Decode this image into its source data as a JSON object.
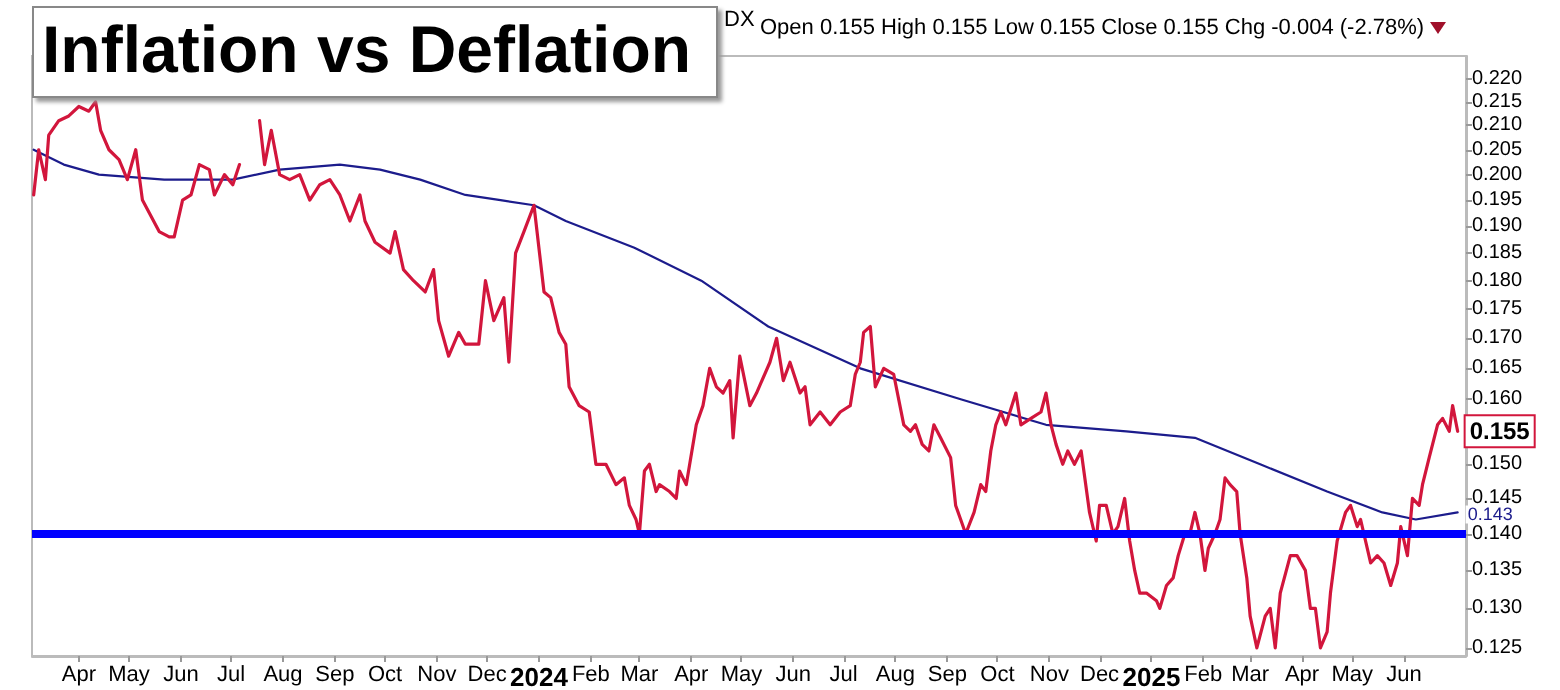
{
  "chart_data": {
    "type": "line",
    "title": "Inflation vs Deflation",
    "annotations": [
      "DX",
      "Open 0.155  High 0.155  Low 0.155  Close 0.155  Chg -0.004 (-2.78%)"
    ],
    "log": true,
    "grid": false,
    "marker": "none",
    "line_style": "solid",
    "xlim": [
      "2023-03-04",
      "2025-07-08"
    ],
    "xticks": [
      {
        "value": "2023-04-01",
        "label": "Apr"
      },
      {
        "value": "2023-05-01",
        "label": "May"
      },
      {
        "value": "2023-06-01",
        "label": "Jun"
      },
      {
        "value": "2023-07-01",
        "label": "Jul"
      },
      {
        "value": "2023-08-01",
        "label": "Aug"
      },
      {
        "value": "2023-09-01",
        "label": "Sep"
      },
      {
        "value": "2023-10-01",
        "label": "Oct"
      },
      {
        "value": "2023-11-01",
        "label": "Nov"
      },
      {
        "value": "2023-12-01",
        "label": "Dec"
      },
      {
        "value": "2024-01-01",
        "label": "2024"
      },
      {
        "value": "2024-02-01",
        "label": "Feb"
      },
      {
        "value": "2024-03-01",
        "label": "Mar"
      },
      {
        "value": "2024-04-01",
        "label": "Apr"
      },
      {
        "value": "2024-05-01",
        "label": "May"
      },
      {
        "value": "2024-06-01",
        "label": "Jun"
      },
      {
        "value": "2024-07-01",
        "label": "Jul"
      },
      {
        "value": "2024-08-01",
        "label": "Aug"
      },
      {
        "value": "2024-09-01",
        "label": "Sep"
      },
      {
        "value": "2024-10-01",
        "label": "Oct"
      },
      {
        "value": "2024-11-01",
        "label": "Nov"
      },
      {
        "value": "2024-12-01",
        "label": "Dec"
      },
      {
        "value": "2025-01-01",
        "label": "2025"
      },
      {
        "value": "2025-02-01",
        "label": "Feb"
      },
      {
        "value": "2025-03-01",
        "label": "Mar"
      },
      {
        "value": "2025-04-01",
        "label": "Apr"
      },
      {
        "value": "2025-05-01",
        "label": "May"
      },
      {
        "value": "2025-06-01",
        "label": "Jun"
      }
    ],
    "ylim": [
      0.124,
      0.225
    ],
    "yticks": [
      {
        "value": 0.125,
        "label": "0.125"
      },
      {
        "value": 0.13,
        "label": "0.130"
      },
      {
        "value": 0.135,
        "label": "0.135"
      },
      {
        "value": 0.14,
        "label": "0.140"
      },
      {
        "value": 0.145,
        "label": "0.145"
      },
      {
        "value": 0.15,
        "label": "0.150"
      },
      {
        "value": 0.155,
        "label": null
      },
      {
        "value": 0.16,
        "label": "0.160"
      },
      {
        "value": 0.165,
        "label": "0.165"
      },
      {
        "value": 0.17,
        "label": "0.170"
      },
      {
        "value": 0.175,
        "label": "0.175"
      },
      {
        "value": 0.18,
        "label": "0.180"
      },
      {
        "value": 0.185,
        "label": "0.185"
      },
      {
        "value": 0.19,
        "label": "0.190"
      },
      {
        "value": 0.195,
        "label": "0.195"
      },
      {
        "value": 0.2,
        "label": "0.200"
      },
      {
        "value": 0.205,
        "label": "0.205"
      },
      {
        "value": 0.21,
        "label": "0.210"
      },
      {
        "value": 0.215,
        "label": "0.215"
      },
      {
        "value": 0.22,
        "label": "0.220"
      }
    ],
    "ref_lines": [
      {
        "axis": "y",
        "value": 0.14,
        "color": "#0000ff"
      }
    ],
    "series": [
      {
        "color": "#d2163c",
        "x": [
          "2023-03-05",
          "2023-03-08",
          "2023-03-12",
          "2023-03-14",
          "2023-03-20",
          "2023-03-26",
          "2023-04-01",
          "2023-04-07",
          "2023-04-11",
          "2023-04-14",
          "2023-04-19",
          "2023-04-25",
          "2023-04-30",
          "2023-05-05",
          "2023-05-09",
          "2023-05-14",
          "2023-05-19",
          "2023-05-25",
          "2023-05-28",
          "2023-06-02",
          "2023-06-07",
          "2023-06-12",
          "2023-06-18",
          "2023-06-21",
          "2023-06-27",
          "2023-07-02",
          "2023-07-06",
          "2023-07-08",
          "2023-07-12",
          "2023-07-18",
          "2023-07-21",
          "2023-07-25",
          "2023-07-30",
          "2023-08-05",
          "2023-08-11",
          "2023-08-17",
          "2023-08-23",
          "2023-08-29",
          "2023-09-04",
          "2023-09-10",
          "2023-09-16",
          "2023-09-19",
          "2023-09-25",
          "2023-10-04",
          "2023-10-07",
          "2023-10-12",
          "2023-10-18",
          "2023-10-25",
          "2023-10-30",
          "2023-11-02",
          "2023-11-08",
          "2023-11-14",
          "2023-11-18",
          "2023-11-26",
          "2023-11-30",
          "2023-12-05",
          "2023-12-11",
          "2023-12-14",
          "2023-12-18",
          "2023-12-23",
          "2023-12-29",
          "2024-01-04",
          "2024-01-08",
          "2024-01-13",
          "2024-01-17",
          "2024-01-19",
          "2024-01-25",
          "2024-01-31",
          "2024-02-04",
          "2024-02-10",
          "2024-02-16",
          "2024-02-21",
          "2024-02-24",
          "2024-02-28",
          "2024-03-01",
          "2024-03-04",
          "2024-03-07",
          "2024-03-11",
          "2024-03-13",
          "2024-03-19",
          "2024-03-23",
          "2024-03-25",
          "2024-03-29",
          "2024-04-04",
          "2024-04-08",
          "2024-04-12",
          "2024-04-16",
          "2024-04-20",
          "2024-04-24",
          "2024-04-26",
          "2024-04-30",
          "2024-05-06",
          "2024-05-10",
          "2024-05-18",
          "2024-05-22",
          "2024-05-26",
          "2024-05-30",
          "2024-06-05",
          "2024-06-08",
          "2024-06-11",
          "2024-06-17",
          "2024-06-23",
          "2024-06-29",
          "2024-07-05",
          "2024-07-08",
          "2024-07-11",
          "2024-07-13",
          "2024-07-17",
          "2024-07-20",
          "2024-07-25",
          "2024-07-31",
          "2024-08-06",
          "2024-08-10",
          "2024-08-13",
          "2024-08-17",
          "2024-08-21",
          "2024-08-24",
          "2024-08-28",
          "2024-09-03",
          "2024-09-06",
          "2024-09-09",
          "2024-09-12",
          "2024-09-17",
          "2024-09-21",
          "2024-09-24",
          "2024-09-27",
          "2024-09-30",
          "2024-10-03",
          "2024-10-06",
          "2024-10-12",
          "2024-10-15",
          "2024-10-21",
          "2024-10-27",
          "2024-10-30",
          "2024-11-02",
          "2024-11-05",
          "2024-11-09",
          "2024-11-12",
          "2024-11-16",
          "2024-11-20",
          "2024-11-25",
          "2024-11-29",
          "2024-12-01",
          "2024-12-05",
          "2024-12-09",
          "2024-12-12",
          "2024-12-16",
          "2024-12-19",
          "2024-12-22",
          "2024-12-25",
          "2024-12-29",
          "2025-01-04",
          "2025-01-06",
          "2025-01-10",
          "2025-01-14",
          "2025-01-17",
          "2025-01-21",
          "2025-01-24",
          "2025-01-27",
          "2025-01-30",
          "2025-02-02",
          "2025-02-04",
          "2025-02-08",
          "2025-02-11",
          "2025-02-14",
          "2025-02-17",
          "2025-02-21",
          "2025-02-23",
          "2025-02-27",
          "2025-03-01",
          "2025-03-05",
          "2025-03-10",
          "2025-03-13",
          "2025-03-16",
          "2025-03-19",
          "2025-03-25",
          "2025-03-29",
          "2025-04-03",
          "2025-04-06",
          "2025-04-09",
          "2025-04-12",
          "2025-04-16",
          "2025-04-18",
          "2025-04-22",
          "2025-04-27",
          "2025-04-30",
          "2025-05-04",
          "2025-05-06",
          "2025-05-12",
          "2025-05-16",
          "2025-05-20",
          "2025-05-24",
          "2025-05-28",
          "2025-05-30",
          "2025-06-03",
          "2025-06-06",
          "2025-06-10",
          "2025-06-12",
          "2025-06-16",
          "2025-06-21",
          "2025-06-24",
          "2025-06-28",
          "2025-06-30",
          "2025-07-03"
        ],
        "values": [
          0.196,
          0.205,
          0.199,
          0.208,
          0.211,
          0.212,
          0.214,
          0.213,
          0.215,
          0.209,
          0.205,
          0.203,
          0.199,
          0.205,
          0.195,
          0.192,
          0.189,
          0.188,
          0.188,
          0.195,
          0.196,
          0.202,
          0.201,
          0.196,
          0.2,
          0.198,
          0.202,
          null,
          null,
          0.211,
          0.202,
          0.209,
          0.2,
          0.199,
          0.2,
          0.195,
          0.198,
          0.199,
          0.196,
          0.191,
          0.196,
          0.191,
          0.187,
          0.185,
          0.189,
          0.182,
          0.18,
          0.178,
          0.182,
          0.173,
          0.167,
          0.171,
          0.169,
          0.169,
          0.18,
          0.173,
          0.177,
          0.166,
          0.185,
          0.189,
          0.194,
          0.178,
          0.177,
          0.171,
          0.169,
          0.162,
          0.159,
          0.158,
          0.15,
          0.15,
          0.147,
          0.148,
          0.144,
          0.142,
          0.14,
          0.149,
          0.15,
          0.146,
          0.147,
          0.146,
          0.145,
          0.149,
          0.147,
          0.156,
          0.159,
          0.165,
          0.162,
          0.161,
          0.163,
          0.154,
          0.167,
          0.159,
          0.161,
          0.166,
          0.17,
          0.163,
          0.166,
          0.161,
          0.162,
          0.156,
          0.158,
          0.156,
          0.158,
          0.159,
          0.164,
          0.166,
          0.171,
          0.172,
          0.162,
          0.165,
          0.164,
          0.156,
          0.155,
          0.156,
          0.153,
          0.152,
          0.156,
          0.154,
          0.151,
          0.144,
          0.142,
          0.14,
          0.143,
          0.147,
          0.146,
          0.152,
          0.156,
          0.158,
          0.156,
          0.161,
          0.156,
          0.157,
          0.158,
          0.161,
          0.156,
          0.153,
          0.15,
          0.152,
          0.15,
          0.152,
          0.143,
          0.139,
          0.144,
          0.144,
          0.14,
          0.141,
          0.145,
          0.139,
          0.135,
          0.132,
          0.132,
          0.131,
          0.13,
          0.133,
          0.134,
          0.137,
          0.14,
          0.14,
          0.143,
          0.14,
          0.135,
          0.138,
          0.14,
          0.142,
          0.148,
          0.147,
          0.146,
          0.14,
          0.134,
          0.129,
          0.125,
          0.129,
          0.13,
          0.125,
          0.132,
          0.137,
          0.137,
          0.135,
          0.13,
          0.13,
          0.125,
          0.127,
          0.132,
          0.139,
          0.143,
          0.144,
          0.141,
          0.142,
          0.136,
          0.137,
          0.136,
          0.133,
          0.136,
          0.141,
          0.137,
          0.145,
          0.144,
          0.147,
          0.151,
          0.156,
          0.157,
          0.155,
          0.159,
          0.155
        ],
        "value_labels": [
          null,
          null,
          null,
          null,
          null,
          null,
          null,
          null,
          null,
          null,
          null,
          null,
          null,
          null,
          null,
          null,
          null,
          null,
          null,
          null,
          null,
          null,
          null,
          null,
          null,
          null,
          null,
          null,
          null,
          null,
          null,
          null,
          null,
          null,
          null,
          null,
          null,
          null,
          null,
          null,
          null,
          null,
          null,
          null,
          null,
          null,
          null,
          null,
          null,
          null,
          null,
          null,
          null,
          null,
          null,
          null,
          null,
          null,
          null,
          null,
          null,
          null,
          null,
          null,
          null,
          null,
          null,
          null,
          null,
          null,
          null,
          null,
          null,
          null,
          null,
          null,
          null,
          null,
          null,
          null,
          null,
          null,
          null,
          null,
          null,
          null,
          null,
          null,
          null,
          null,
          null,
          null,
          null,
          null,
          null,
          null,
          null,
          null,
          null,
          null,
          null,
          null,
          null,
          null,
          null,
          null,
          null,
          null,
          null,
          null,
          null,
          null,
          null,
          null,
          null,
          null,
          null,
          null,
          null,
          null,
          null,
          null,
          null,
          null,
          null,
          null,
          null,
          null,
          null,
          null,
          null,
          null,
          null,
          null,
          null,
          null,
          null,
          null,
          null,
          null,
          null,
          null,
          null,
          null,
          null,
          null,
          null,
          null,
          null,
          null,
          null,
          null,
          null,
          null,
          null,
          null,
          null,
          null,
          null,
          null,
          null,
          null,
          null,
          null,
          null,
          null,
          null,
          null,
          null,
          null,
          null,
          null,
          null,
          null,
          null,
          null,
          null,
          null,
          null,
          null,
          null,
          null,
          null,
          null,
          null,
          null,
          null,
          null,
          null,
          null,
          null,
          null,
          null,
          null,
          null,
          null,
          null,
          null,
          null,
          null,
          null,
          null,
          null,
          "0.155"
        ]
      },
      {
        "color": "#1c1c8c",
        "x": [
          "2023-03-05",
          "2023-03-23",
          "2023-04-13",
          "2023-05-22",
          "2023-06-12",
          "2023-07-02",
          "2023-07-30",
          "2023-09-04",
          "2023-09-28",
          "2023-10-22",
          "2023-11-18",
          "2023-12-09",
          "2023-12-29",
          "2024-01-17",
          "2024-02-27",
          "2024-04-07",
          "2024-05-17",
          "2024-07-11",
          "2024-09-09",
          "2024-10-30",
          "2024-12-17",
          "2025-01-27",
          "2025-03-07",
          "2025-04-16",
          "2025-05-19",
          "2025-06-08",
          "2025-07-03"
        ],
        "values": [
          0.205,
          0.202,
          0.2,
          0.199,
          0.199,
          0.199,
          0.201,
          0.202,
          0.201,
          0.199,
          0.196,
          0.195,
          0.194,
          0.191,
          0.186,
          0.18,
          0.172,
          0.165,
          0.16,
          0.156,
          0.155,
          0.154,
          0.15,
          0.146,
          0.143,
          0.142,
          0.143
        ],
        "value_labels": [
          null,
          null,
          null,
          null,
          null,
          null,
          null,
          null,
          null,
          null,
          null,
          null,
          null,
          null,
          null,
          null,
          null,
          null,
          null,
          null,
          null,
          null,
          null,
          null,
          null,
          null,
          "0.143"
        ]
      }
    ]
  }
}
